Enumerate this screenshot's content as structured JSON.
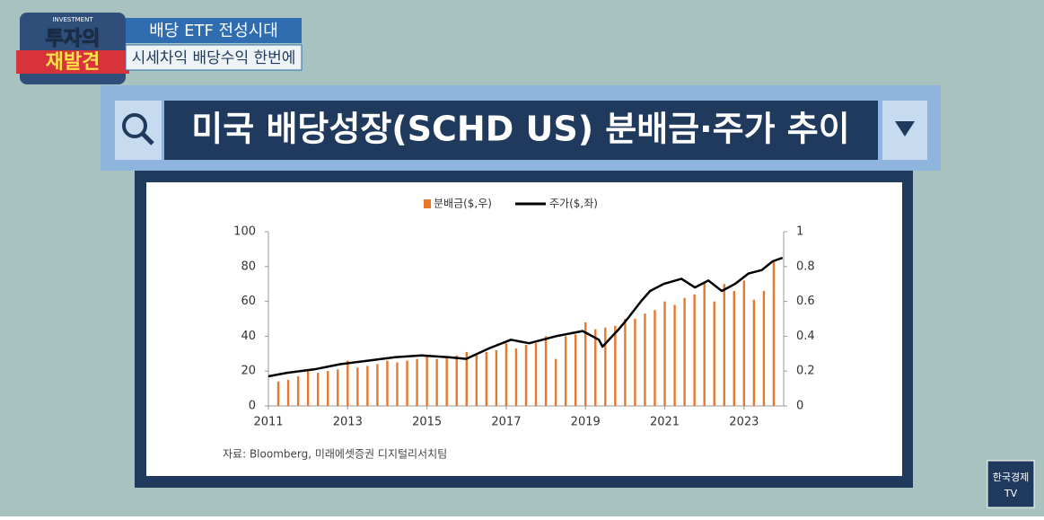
{
  "header": {
    "logo_top": "INVESTMENT",
    "logo_line1": "투자의",
    "logo_line2": "재발견",
    "banner_line1": "배당 ETF 전성시대",
    "banner_line2": "시세차익 배당수익 한번에",
    "broadcaster_line1": "한국경제",
    "broadcaster_line2": "TV"
  },
  "chart_data": {
    "type": "combo",
    "title": "미국 배당성장(SCHD US) 분배금·주가 추이",
    "source": "자료: Bloomberg, 미래에셋증권 디지털리서치팀",
    "xlim": [
      2011,
      2024
    ],
    "xticks": [
      2011,
      2013,
      2015,
      2017,
      2019,
      2021,
      2023
    ],
    "ylim": [
      0,
      100
    ],
    "yticks": [
      0,
      20,
      40,
      60,
      80,
      100
    ],
    "y2lim": [
      0,
      1
    ],
    "y2ticks": [
      0,
      0.2,
      0.4,
      0.6,
      0.8,
      1
    ],
    "legend": "top",
    "series": [
      {
        "name": "분배금($,우)",
        "type": "bar",
        "axis": "y2",
        "color": "#e8772e",
        "x": [
          2011.25,
          2011.5,
          2011.75,
          2012,
          2012.25,
          2012.5,
          2012.75,
          2013,
          2013.25,
          2013.5,
          2013.75,
          2014,
          2014.25,
          2014.5,
          2014.75,
          2015,
          2015.25,
          2015.5,
          2015.75,
          2016,
          2016.25,
          2016.5,
          2016.75,
          2017,
          2017.25,
          2017.5,
          2017.75,
          2018,
          2018.25,
          2018.5,
          2018.75,
          2019,
          2019.25,
          2019.5,
          2019.75,
          2020,
          2020.25,
          2020.5,
          2020.75,
          2021,
          2021.25,
          2021.5,
          2021.75,
          2022,
          2022.25,
          2022.5,
          2022.75,
          2023,
          2023.25,
          2023.5,
          2023.75
        ],
        "values": [
          0.14,
          0.15,
          0.17,
          0.2,
          0.19,
          0.2,
          0.21,
          0.26,
          0.22,
          0.23,
          0.24,
          0.26,
          0.25,
          0.26,
          0.27,
          0.29,
          0.27,
          0.28,
          0.29,
          0.31,
          0.3,
          0.31,
          0.32,
          0.36,
          0.33,
          0.35,
          0.36,
          0.4,
          0.27,
          0.4,
          0.41,
          0.48,
          0.44,
          0.45,
          0.46,
          0.5,
          0.5,
          0.53,
          0.55,
          0.6,
          0.58,
          0.62,
          0.64,
          0.71,
          0.6,
          0.7,
          0.66,
          0.72,
          0.61,
          0.66,
          0.83
        ]
      },
      {
        "name": "주가($,좌)",
        "type": "line",
        "color": "#000000",
        "x": [
          2011,
          2011.47,
          2012.15,
          2012.83,
          2013.51,
          2014.19,
          2014.86,
          2015.54,
          2015.99,
          2016.56,
          2017.12,
          2017.58,
          2018.25,
          2018.93,
          2019.34,
          2019.43,
          2019.84,
          2020.06,
          2020.4,
          2020.63,
          2020.97,
          2021.42,
          2021.76,
          2022.1,
          2022.44,
          2022.77,
          2023.11,
          2023.45,
          2023.72,
          2023.97
        ],
        "values": [
          17,
          19,
          21,
          24,
          26,
          28,
          29,
          28,
          27,
          33,
          38,
          36,
          40,
          43,
          38,
          34,
          44,
          50,
          60,
          66,
          70,
          73,
          68,
          72,
          66,
          70,
          76,
          78,
          83,
          85
        ]
      }
    ]
  }
}
